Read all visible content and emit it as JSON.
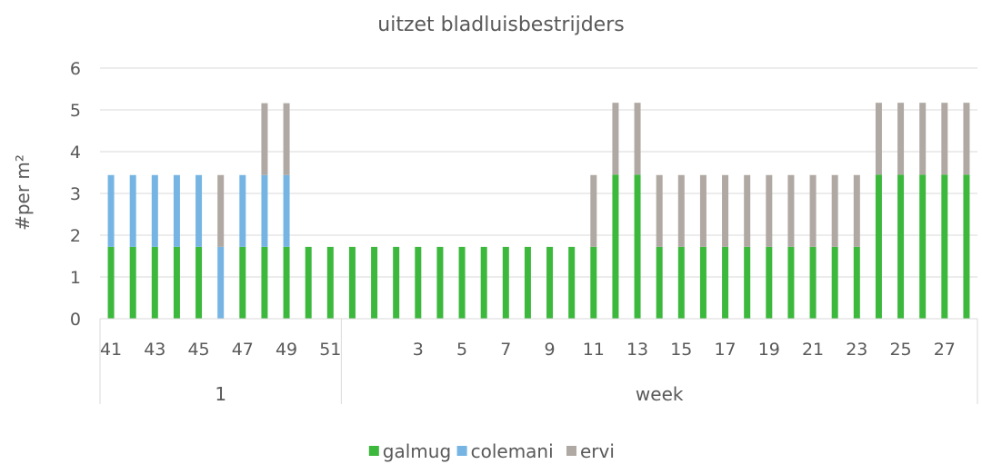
{
  "chart_data": {
    "type": "bar",
    "stacked": true,
    "title": "uitzet bladluisbestrijders",
    "ylabel": "#per m²",
    "ylim": [
      0,
      6
    ],
    "yticks": [
      "0",
      "1",
      "2",
      "3",
      "4",
      "5",
      "6"
    ],
    "grid": true,
    "legend_position": "bottom",
    "categories": [
      41,
      42,
      43,
      44,
      45,
      46,
      47,
      48,
      49,
      50,
      51,
      52,
      1,
      2,
      3,
      4,
      5,
      6,
      7,
      8,
      9,
      10,
      11,
      12,
      13,
      14,
      15,
      16,
      17,
      18,
      19,
      20,
      21,
      22,
      23,
      24,
      25,
      26,
      27,
      28
    ],
    "x_tick_labels": [
      "41",
      "",
      "43",
      "",
      "45",
      "",
      "47",
      "",
      "49",
      "",
      "51",
      "",
      "",
      "",
      "3",
      "",
      "5",
      "",
      "7",
      "",
      "9",
      "",
      "11",
      "",
      "13",
      "",
      "15",
      "",
      "17",
      "",
      "19",
      "",
      "21",
      "",
      "23",
      "",
      "25",
      "",
      "27",
      ""
    ],
    "groups": [
      {
        "label": "1",
        "start": 0,
        "count": 11
      },
      {
        "label": "week",
        "start": 11,
        "count": 29
      }
    ],
    "series": [
      {
        "name": "galmug",
        "color": "#3cb83c",
        "values": [
          1.72,
          1.72,
          1.72,
          1.72,
          1.72,
          0,
          1.72,
          1.72,
          1.72,
          1.72,
          1.72,
          1.72,
          1.72,
          1.72,
          1.72,
          1.72,
          1.72,
          1.72,
          1.72,
          1.72,
          1.72,
          1.72,
          1.72,
          3.45,
          3.45,
          1.72,
          1.72,
          1.72,
          1.72,
          1.72,
          1.72,
          1.72,
          1.72,
          1.72,
          1.72,
          3.45,
          3.45,
          3.45,
          3.45,
          3.45
        ]
      },
      {
        "name": "colemani",
        "color": "#76b5e3",
        "values": [
          1.72,
          1.72,
          1.72,
          1.72,
          1.72,
          1.72,
          1.72,
          1.72,
          1.72,
          0,
          0,
          0,
          0,
          0,
          0,
          0,
          0,
          0,
          0,
          0,
          0,
          0,
          0,
          0,
          0,
          0,
          0,
          0,
          0,
          0,
          0,
          0,
          0,
          0,
          0,
          0,
          0,
          0,
          0,
          0
        ]
      },
      {
        "name": "ervi",
        "color": "#b0a9a3",
        "values": [
          0,
          0,
          0,
          0,
          0,
          1.72,
          0,
          1.72,
          1.72,
          0,
          0,
          0,
          0,
          0,
          0,
          0,
          0,
          0,
          0,
          0,
          0,
          0,
          1.72,
          1.72,
          1.72,
          1.72,
          1.72,
          1.72,
          1.72,
          1.72,
          1.72,
          1.72,
          1.72,
          1.72,
          1.72,
          1.72,
          1.72,
          1.72,
          1.72,
          1.72
        ]
      }
    ]
  }
}
